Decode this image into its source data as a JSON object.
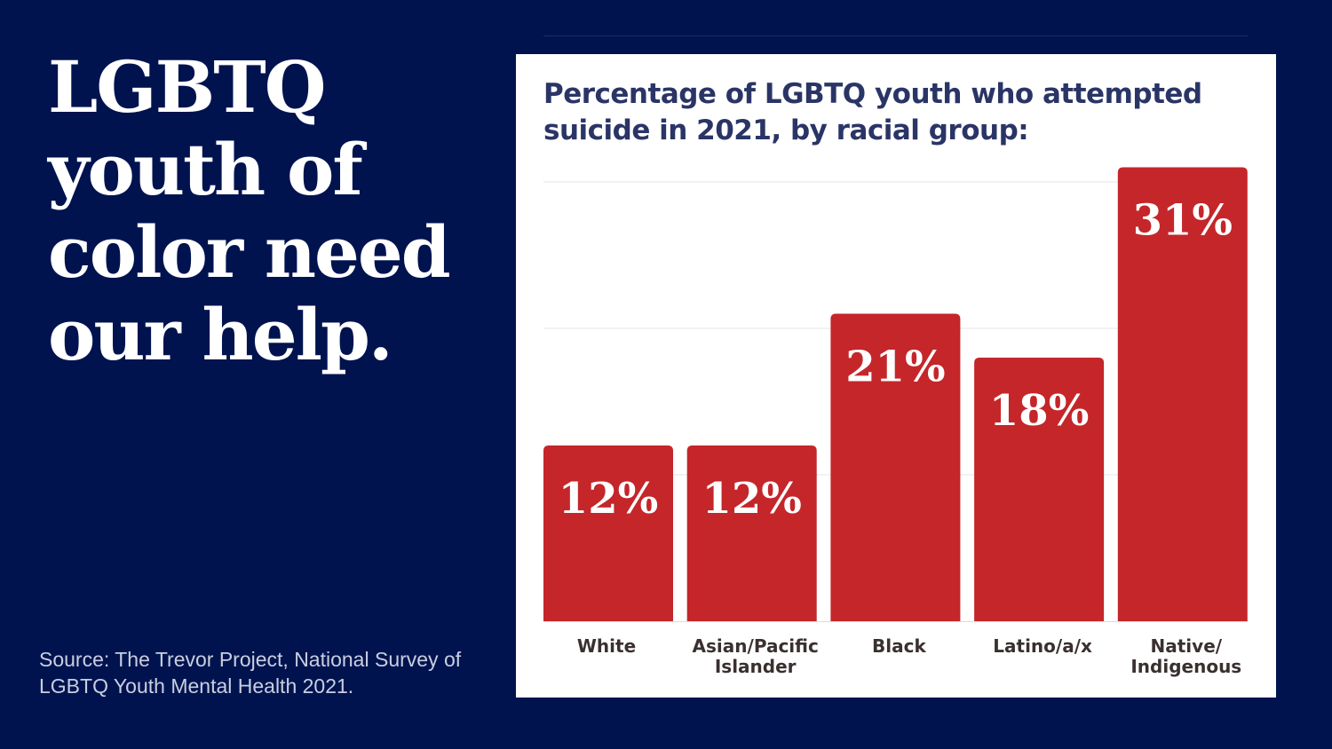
{
  "headline": "LGBTQ youth of color need our help.",
  "source": "Source: The Trevor Project, National Survey of LGBTQ Youth Mental Health 2021.",
  "colors": {
    "background": "#00134f",
    "bar": "#c4262a",
    "title": "#2a3566"
  },
  "chart_data": {
    "type": "bar",
    "title": "Percentage of LGBTQ youth who attempted suicide in 2021, by racial group:",
    "categories": [
      [
        "White"
      ],
      [
        "Asian/Pacific",
        "Islander"
      ],
      [
        "Black"
      ],
      [
        "Latino/a/x"
      ],
      [
        "Native/",
        "Indigenous"
      ]
    ],
    "values": [
      12,
      12,
      21,
      18,
      31
    ],
    "data_labels": [
      "12%",
      "12%",
      "21%",
      "18%",
      "31%"
    ],
    "xlabel": "",
    "ylabel": "",
    "ylim": [
      0,
      31
    ],
    "gridlines": [
      10,
      20,
      30
    ],
    "grid": true
  }
}
